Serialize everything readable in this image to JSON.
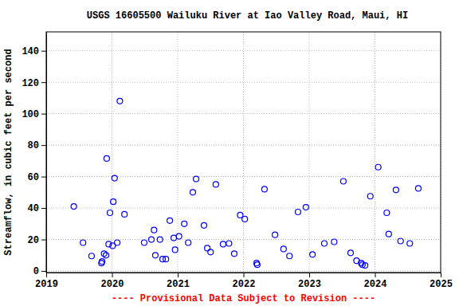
{
  "chart_data": {
    "type": "scatter",
    "title": "USGS 16605500 Wailuku River at Iao Valley Road, Maui, HI",
    "y_label": "Streamflow, in cubic feet per second",
    "annotations": [
      "---- Provisional Data Subject to Revision ----"
    ],
    "x": [
      2019.42,
      2019.56,
      2019.69,
      2019.84,
      2019.85,
      2019.88,
      2019.91,
      2019.92,
      2019.95,
      2019.97,
      2020.01,
      2020.02,
      2020.04,
      2020.08,
      2020.12,
      2020.19,
      2020.49,
      2020.6,
      2020.64,
      2020.66,
      2020.73,
      2020.77,
      2020.82,
      2020.88,
      2020.94,
      2020.96,
      2021.02,
      2021.1,
      2021.16,
      2021.23,
      2021.28,
      2021.4,
      2021.45,
      2021.5,
      2021.58,
      2021.69,
      2021.78,
      2021.86,
      2021.95,
      2022.02,
      2022.2,
      2022.21,
      2022.32,
      2022.48,
      2022.61,
      2022.7,
      2022.83,
      2022.95,
      2023.05,
      2023.23,
      2023.38,
      2023.52,
      2023.63,
      2023.72,
      2023.79,
      2023.81,
      2023.85,
      2023.93,
      2024.05,
      2024.18,
      2024.21,
      2024.32,
      2024.39,
      2024.53,
      2024.66
    ],
    "values": [
      41,
      18,
      9.5,
      5,
      6,
      11,
      10,
      71.5,
      17,
      37,
      16,
      44,
      59,
      18,
      108,
      36,
      18,
      20,
      26,
      10,
      20,
      7.5,
      7.5,
      32,
      21,
      13.5,
      22,
      30,
      18,
      50,
      58.5,
      29,
      14.5,
      12,
      55,
      17,
      17.5,
      11,
      35.5,
      33,
      5,
      4,
      52,
      23,
      14,
      9.5,
      37.5,
      40.5,
      10.5,
      17.5,
      18.5,
      57,
      11.5,
      6.5,
      5,
      4,
      3.5,
      47.5,
      66,
      37,
      23.5,
      51.5,
      19,
      17.5,
      52.5
    ],
    "color": "#0000ff",
    "marker": "open-circle",
    "xlim": [
      2019,
      2025
    ],
    "xticks": [
      2019,
      2020,
      2021,
      2022,
      2023,
      2024,
      2025
    ],
    "ylim": [
      -1,
      152
    ],
    "yticks": [
      0,
      20,
      40,
      60,
      80,
      100,
      120,
      140
    ],
    "grid": true
  }
}
